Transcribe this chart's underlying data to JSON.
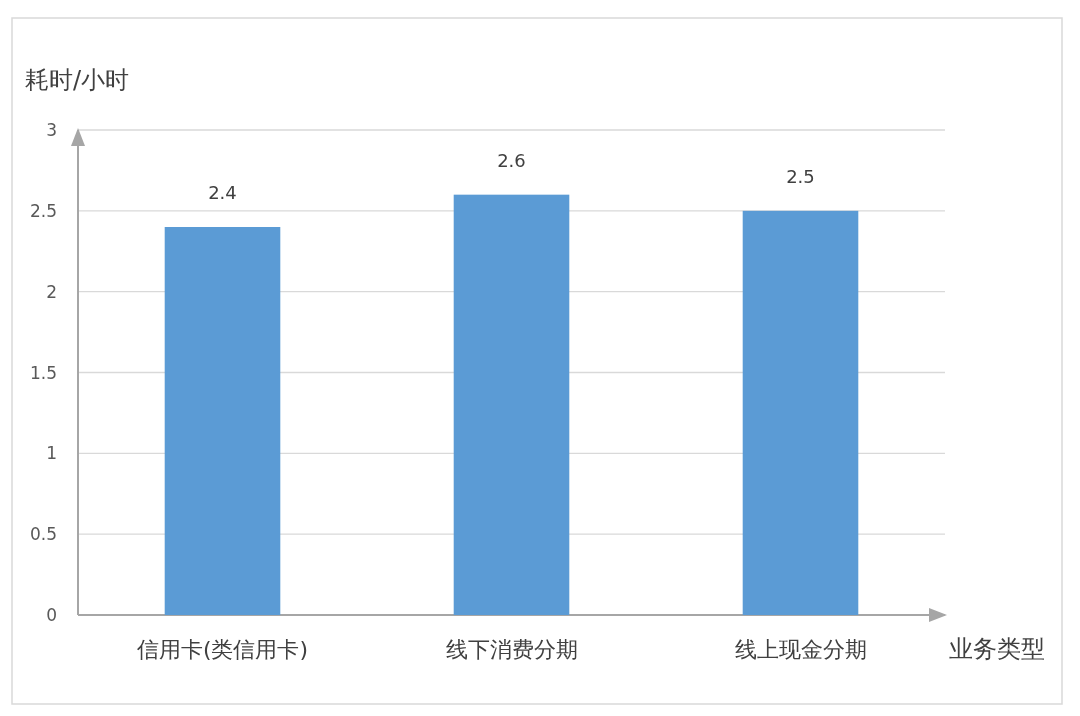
{
  "chart_data": {
    "type": "bar",
    "ylabel": "耗时/小时",
    "xlabel": "业务类型",
    "categories": [
      "信用卡(类信用卡)",
      "线下消费分期",
      "线上现金分期"
    ],
    "values": [
      2.4,
      2.6,
      2.5
    ],
    "color": "#5b9bd5",
    "ylim": [
      0,
      3
    ],
    "yticks": [
      0,
      0.5,
      1,
      1.5,
      2,
      2.5,
      3
    ],
    "grid": "y",
    "data_labels": true
  }
}
